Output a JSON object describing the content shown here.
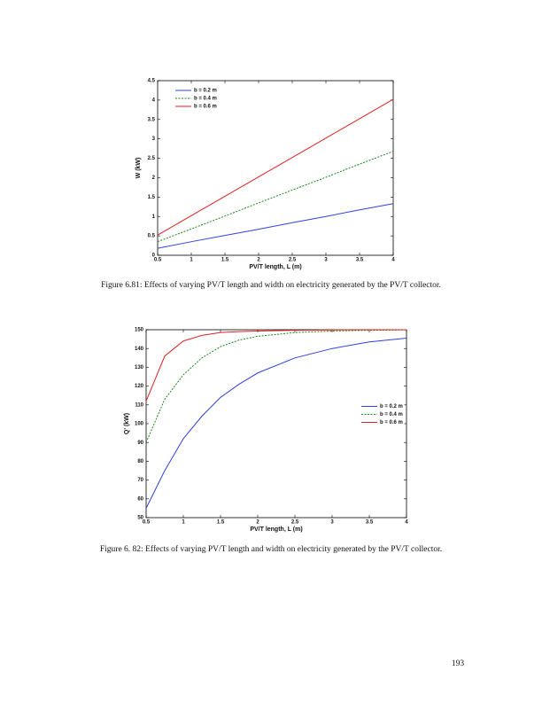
{
  "chart_data": [
    {
      "type": "line",
      "ylabel": "W (kW)",
      "xlabel": "PV/T length, L (m)",
      "x": [
        0.5,
        1,
        1.5,
        2,
        2.5,
        3,
        3.5,
        4
      ],
      "series": [
        {
          "name": "b = 0.2 m",
          "color": "#3040e0",
          "dashed": false,
          "values": [
            0.18,
            0.35,
            0.51,
            0.67,
            0.84,
            1.0,
            1.17,
            1.33
          ]
        },
        {
          "name": "b = 0.4 m",
          "color": "#1a8a1a",
          "dashed": true,
          "values": [
            0.35,
            0.68,
            1.01,
            1.35,
            1.68,
            2.01,
            2.35,
            2.68
          ]
        },
        {
          "name": "b = 0.6 m",
          "color": "#e02020",
          "dashed": false,
          "values": [
            0.52,
            1.02,
            1.52,
            2.02,
            2.52,
            3.02,
            3.52,
            4.02
          ]
        }
      ],
      "xlim": [
        0.5,
        4
      ],
      "xticks": [
        0.5,
        1,
        1.5,
        2,
        2.5,
        3,
        3.5,
        4
      ],
      "ylim": [
        0,
        4.5
      ],
      "yticks": [
        0,
        0.5,
        1,
        1.5,
        2,
        2.5,
        3,
        3.5,
        4,
        4.5
      ],
      "legend": "upper left",
      "grid": false
    },
    {
      "type": "line",
      "ylabel": "Q' (kW)",
      "xlabel": "PV/T length, L (m)",
      "x": [
        0.5,
        0.75,
        1,
        1.25,
        1.5,
        1.75,
        2,
        2.5,
        3,
        3.5,
        4
      ],
      "series": [
        {
          "name": "b = 0.2 m",
          "color": "#3040e0",
          "dashed": false,
          "values": [
            55,
            75,
            92,
            104,
            114,
            121,
            127,
            135,
            140,
            143.5,
            145.5
          ]
        },
        {
          "name": "b = 0.4 m",
          "color": "#1a8a1a",
          "dashed": true,
          "values": [
            90,
            113,
            126,
            135,
            141,
            144.5,
            146.5,
            148.5,
            149.3,
            149.7,
            149.9
          ]
        },
        {
          "name": "b = 0.6 m",
          "color": "#e02020",
          "dashed": false,
          "values": [
            112,
            136,
            144,
            147,
            148.5,
            149,
            149.3,
            149.7,
            149.9,
            150,
            150
          ]
        }
      ],
      "xlim": [
        0.5,
        4
      ],
      "xticks": [
        0.5,
        1,
        1.5,
        2,
        2.5,
        3,
        3.5,
        4
      ],
      "ylim": [
        50,
        150
      ],
      "yticks": [
        50,
        60,
        70,
        80,
        90,
        100,
        110,
        120,
        130,
        140,
        150
      ],
      "legend": "center right",
      "grid": false
    }
  ],
  "captions": [
    "Figure 6.81: Effects of varying PV/T length and width on electricity generated by the PV/T collector.",
    "Figure 6. 82: Effects of varying PV/T length and width on electricity generated by the PV/T collector."
  ],
  "page_number": "193"
}
